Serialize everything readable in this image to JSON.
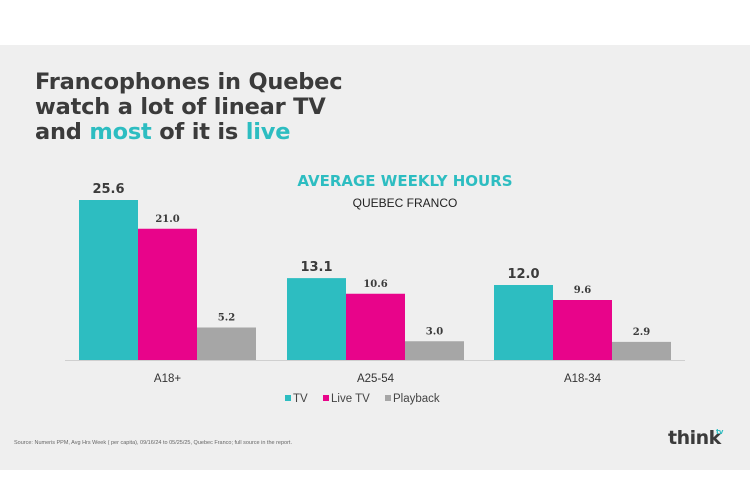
{
  "headline": {
    "line1": "Francophones in Quebec",
    "line2": "watch a lot of linear TV",
    "line3_a": "and ",
    "line3_b": "most",
    "line3_c": " of it is ",
    "line3_d": "live"
  },
  "source": "Source: Numeris PPM, Avg Hrs Week ( per capita), 09/16/24 to 05/25/25, Quebec Franco; full source in the report.",
  "logo": {
    "text": "think",
    "sup": "tv"
  },
  "colors": {
    "tv": "#2dbdc1",
    "live_tv": "#e8048a",
    "playback": "#a6a6a6",
    "accent": "#2dbdc1",
    "text": "#3b3b3b"
  },
  "chart_data": {
    "type": "bar",
    "title": "AVERAGE WEEKLY HOURS",
    "subtitle": "QUEBEC FRANCO",
    "categories": [
      "A18+",
      "A25-54",
      "A18-34"
    ],
    "series": [
      {
        "name": "TV",
        "values": [
          25.6,
          13.1,
          12.0
        ],
        "labels": [
          "25.6",
          "13.1",
          "12.0"
        ]
      },
      {
        "name": "Live TV",
        "values": [
          21.0,
          10.6,
          9.6
        ],
        "labels": [
          "21.0",
          "10.6",
          "9.6"
        ]
      },
      {
        "name": "Playback",
        "values": [
          5.2,
          3.0,
          2.9
        ],
        "labels": [
          "5.2",
          "3.0",
          "2.9"
        ]
      }
    ],
    "ylim": [
      0,
      25.6
    ],
    "grid": false,
    "legend": "bottom-center"
  }
}
